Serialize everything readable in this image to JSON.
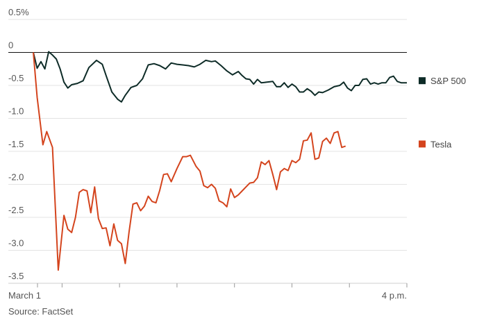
{
  "chart_data": {
    "type": "line",
    "title": "",
    "xlabel": "",
    "ylabel": "",
    "ylim": [
      -3.5,
      0.5
    ],
    "y_ticks": [
      {
        "value": 0.5,
        "label": "0.5%"
      },
      {
        "value": 0,
        "label": "0"
      },
      {
        "value": -0.5,
        "label": "-0.5"
      },
      {
        "value": -1.0,
        "label": "-1.0"
      },
      {
        "value": -1.5,
        "label": "-1.5"
      },
      {
        "value": -2.0,
        "label": "-2.0"
      },
      {
        "value": -2.5,
        "label": "-2.5"
      },
      {
        "value": -3.0,
        "label": "-3.0"
      },
      {
        "value": -3.5,
        "label": "-3.5"
      }
    ],
    "x_range": [
      0,
      390
    ],
    "x_ticks": [
      0,
      30,
      90,
      150,
      210,
      270,
      330,
      390
    ],
    "x_tick_labels": [
      {
        "value": 0,
        "label": "March 1"
      },
      {
        "value": 390,
        "label": "4 p.m."
      }
    ],
    "grid": "horizontal",
    "legend": "right",
    "series": [
      {
        "name": "S&P 500",
        "color": "#0d2b27",
        "points": [
          [
            0,
            0
          ],
          [
            4,
            -0.24
          ],
          [
            8,
            -0.14
          ],
          [
            12,
            -0.25
          ],
          [
            16,
            0.01
          ],
          [
            20,
            -0.04
          ],
          [
            24,
            -0.1
          ],
          [
            28,
            -0.25
          ],
          [
            32,
            -0.45
          ],
          [
            36,
            -0.54
          ],
          [
            40,
            -0.49
          ],
          [
            46,
            -0.47
          ],
          [
            52,
            -0.43
          ],
          [
            58,
            -0.23
          ],
          [
            66,
            -0.12
          ],
          [
            72,
            -0.18
          ],
          [
            76,
            -0.35
          ],
          [
            82,
            -0.6
          ],
          [
            88,
            -0.71
          ],
          [
            92,
            -0.75
          ],
          [
            96,
            -0.65
          ],
          [
            102,
            -0.53
          ],
          [
            108,
            -0.5
          ],
          [
            114,
            -0.4
          ],
          [
            120,
            -0.19
          ],
          [
            126,
            -0.17
          ],
          [
            132,
            -0.2
          ],
          [
            138,
            -0.25
          ],
          [
            144,
            -0.16
          ],
          [
            150,
            -0.18
          ],
          [
            156,
            -0.19
          ],
          [
            162,
            -0.2
          ],
          [
            168,
            -0.22
          ],
          [
            174,
            -0.18
          ],
          [
            180,
            -0.12
          ],
          [
            186,
            -0.14
          ],
          [
            190,
            -0.13
          ],
          [
            196,
            -0.2
          ],
          [
            202,
            -0.28
          ],
          [
            208,
            -0.34
          ],
          [
            214,
            -0.29
          ],
          [
            218,
            -0.35
          ],
          [
            222,
            -0.4
          ],
          [
            226,
            -0.41
          ],
          [
            230,
            -0.48
          ],
          [
            234,
            -0.41
          ],
          [
            238,
            -0.46
          ],
          [
            244,
            -0.45
          ],
          [
            250,
            -0.44
          ],
          [
            254,
            -0.52
          ],
          [
            258,
            -0.52
          ],
          [
            262,
            -0.46
          ],
          [
            266,
            -0.53
          ],
          [
            270,
            -0.48
          ],
          [
            274,
            -0.52
          ],
          [
            278,
            -0.6
          ],
          [
            282,
            -0.6
          ],
          [
            286,
            -0.55
          ],
          [
            290,
            -0.59
          ],
          [
            294,
            -0.65
          ],
          [
            298,
            -0.6
          ],
          [
            302,
            -0.61
          ],
          [
            308,
            -0.57
          ],
          [
            314,
            -0.52
          ],
          [
            320,
            -0.5
          ],
          [
            324,
            -0.45
          ],
          [
            328,
            -0.54
          ],
          [
            332,
            -0.58
          ],
          [
            336,
            -0.5
          ],
          [
            340,
            -0.5
          ],
          [
            344,
            -0.41
          ],
          [
            348,
            -0.4
          ],
          [
            352,
            -0.48
          ],
          [
            356,
            -0.46
          ],
          [
            360,
            -0.48
          ],
          [
            364,
            -0.46
          ],
          [
            368,
            -0.46
          ],
          [
            372,
            -0.38
          ],
          [
            376,
            -0.36
          ],
          [
            380,
            -0.44
          ],
          [
            384,
            -0.46
          ],
          [
            390,
            -0.46
          ]
        ]
      },
      {
        "name": "Tesla",
        "color": "#d4441d",
        "points": [
          [
            0,
            0
          ],
          [
            4,
            -0.68
          ],
          [
            10,
            -1.4
          ],
          [
            14,
            -1.2
          ],
          [
            20,
            -1.44
          ],
          [
            26,
            -3.3
          ],
          [
            32,
            -2.47
          ],
          [
            36,
            -2.68
          ],
          [
            40,
            -2.73
          ],
          [
            44,
            -2.5
          ],
          [
            48,
            -2.12
          ],
          [
            52,
            -2.08
          ],
          [
            56,
            -2.1
          ],
          [
            60,
            -2.43
          ],
          [
            64,
            -2.04
          ],
          [
            68,
            -2.52
          ],
          [
            72,
            -2.67
          ],
          [
            76,
            -2.66
          ],
          [
            80,
            -2.93
          ],
          [
            84,
            -2.6
          ],
          [
            88,
            -2.85
          ],
          [
            92,
            -2.9
          ],
          [
            96,
            -3.2
          ],
          [
            100,
            -2.72
          ],
          [
            104,
            -2.3
          ],
          [
            108,
            -2.28
          ],
          [
            112,
            -2.4
          ],
          [
            116,
            -2.33
          ],
          [
            120,
            -2.18
          ],
          [
            124,
            -2.26
          ],
          [
            128,
            -2.28
          ],
          [
            132,
            -2.09
          ],
          [
            136,
            -1.85
          ],
          [
            140,
            -1.84
          ],
          [
            144,
            -1.96
          ],
          [
            150,
            -1.76
          ],
          [
            156,
            -1.58
          ],
          [
            160,
            -1.58
          ],
          [
            164,
            -1.56
          ],
          [
            170,
            -1.73
          ],
          [
            174,
            -1.8
          ],
          [
            178,
            -2.02
          ],
          [
            182,
            -2.05
          ],
          [
            186,
            -2.0
          ],
          [
            190,
            -2.06
          ],
          [
            194,
            -2.25
          ],
          [
            198,
            -2.28
          ],
          [
            202,
            -2.34
          ],
          [
            206,
            -2.07
          ],
          [
            210,
            -2.2
          ],
          [
            214,
            -2.16
          ],
          [
            218,
            -2.1
          ],
          [
            222,
            -2.04
          ],
          [
            226,
            -1.98
          ],
          [
            230,
            -1.97
          ],
          [
            234,
            -1.9
          ],
          [
            238,
            -1.66
          ],
          [
            242,
            -1.7
          ],
          [
            246,
            -1.64
          ],
          [
            250,
            -1.85
          ],
          [
            254,
            -2.08
          ],
          [
            258,
            -1.81
          ],
          [
            262,
            -1.76
          ],
          [
            266,
            -1.79
          ],
          [
            270,
            -1.64
          ],
          [
            274,
            -1.67
          ],
          [
            278,
            -1.62
          ],
          [
            282,
            -1.34
          ],
          [
            286,
            -1.33
          ],
          [
            290,
            -1.22
          ],
          [
            294,
            -1.62
          ],
          [
            298,
            -1.6
          ],
          [
            302,
            -1.35
          ],
          [
            306,
            -1.3
          ],
          [
            310,
            -1.38
          ],
          [
            314,
            -1.22
          ],
          [
            318,
            -1.2
          ],
          [
            322,
            -1.44
          ],
          [
            326,
            -1.42
          ]
        ]
      }
    ],
    "source": "Source: FactSet"
  }
}
